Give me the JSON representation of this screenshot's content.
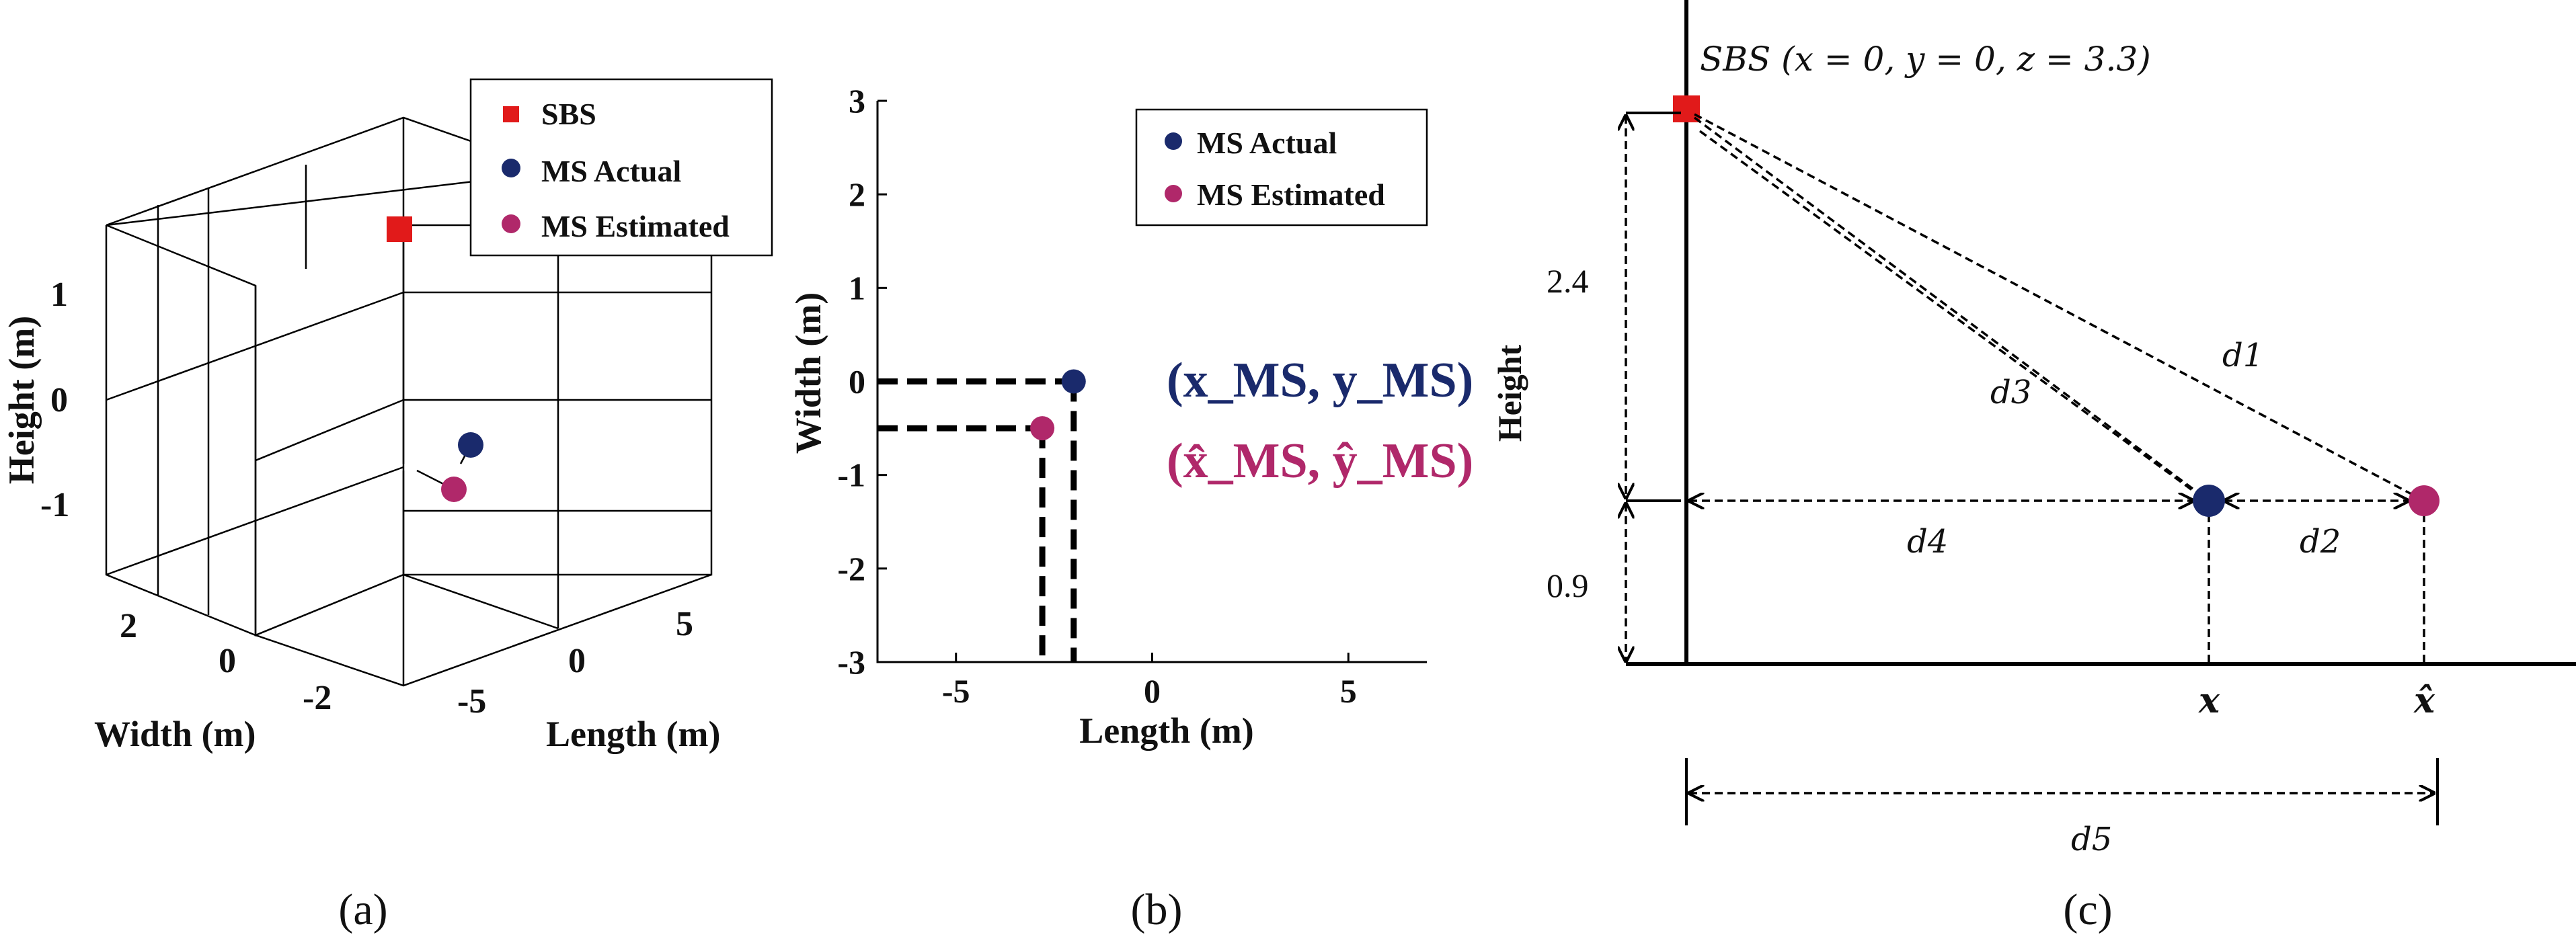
{
  "colors": {
    "sbs": "#e11a1a",
    "ms_actual": "#1a2a6c",
    "ms_estimated": "#b0286a",
    "axis": "#000000"
  },
  "panel_a": {
    "caption": "(a)",
    "legend": [
      "SBS",
      "MS Actual",
      "MS Estimated"
    ],
    "z_label": "Height (m)",
    "z_ticks": [
      "1",
      "0",
      "-1"
    ],
    "width_label": "Width (m)",
    "width_ticks": [
      "2",
      "0",
      "-2"
    ],
    "length_label": "Length (m)",
    "length_ticks": [
      "5",
      "0",
      "-5"
    ]
  },
  "panel_b": {
    "caption": "(b)",
    "legend": [
      "MS Actual",
      "MS Estimated"
    ],
    "ylabel": "Width (m)",
    "xlabel": "Length (m)",
    "y_ticks": [
      "3",
      "2",
      "1",
      "0",
      "-1",
      "-2",
      "-3"
    ],
    "x_ticks": [
      "-5",
      "0",
      "5"
    ],
    "actual_label": "(x_MS, y_MS)",
    "estimated_label": "(x̂_MS, ŷ_MS)"
  },
  "panel_c": {
    "caption": "(c)",
    "sbs_label": "SBS (x = 0, y = 0, z = 3.3)",
    "height_label": "Height",
    "dim_upper": "2.4",
    "dim_lower": "0.9",
    "d1": "d1",
    "d2": "d2",
    "d3": "d3",
    "d4": "d4",
    "d5": "d5",
    "x_label": "x",
    "xhat_label": "x̂"
  },
  "chart_data": [
    {
      "type": "scatter",
      "title": "(a)",
      "dimensions": 3,
      "xlabel": "Length (m)",
      "ylabel": "Width (m)",
      "zlabel": "Height (m)",
      "series": [
        {
          "name": "SBS",
          "points": [
            [
              0,
              0,
              1.6
            ]
          ]
        },
        {
          "name": "MS Actual",
          "points": [
            [
              -2,
              0,
              -0.5
            ]
          ]
        },
        {
          "name": "MS Estimated",
          "points": [
            [
              -2.8,
              -0.5,
              -0.9
            ]
          ]
        }
      ],
      "legend": "top-right"
    },
    {
      "type": "scatter",
      "title": "(b)",
      "xlabel": "Length (m)",
      "ylabel": "Width (m)",
      "xlim": [
        -7,
        7
      ],
      "ylim": [
        -3,
        3
      ],
      "series": [
        {
          "name": "MS Actual",
          "x": [
            -2
          ],
          "y": [
            0
          ]
        },
        {
          "name": "MS Estimated",
          "x": [
            -2.8
          ],
          "y": [
            -0.5
          ]
        }
      ],
      "legend": "top-right"
    }
  ]
}
